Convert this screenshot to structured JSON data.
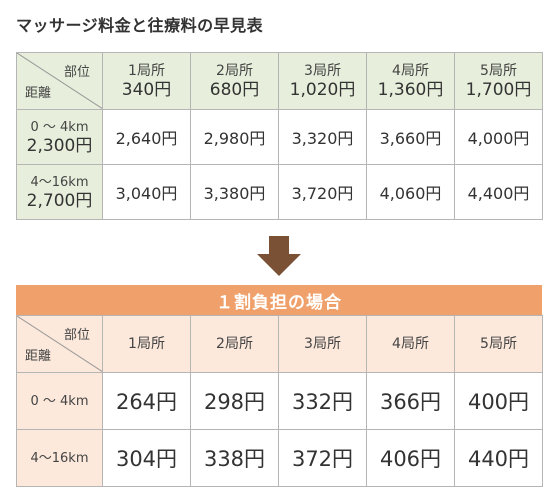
{
  "title": "マッサージ料金と往療料の早見表",
  "corner": {
    "top": "部位",
    "bottom": "距離"
  },
  "colors": {
    "green_header": "#e7efdc",
    "orange_header": "#fce9dc",
    "banner": "#f0a06a",
    "arrow": "#7a5134"
  },
  "table1": {
    "columns": [
      {
        "label": "1局所",
        "price": "340円"
      },
      {
        "label": "2局所",
        "price": "680円"
      },
      {
        "label": "3局所",
        "price": "1,020円"
      },
      {
        "label": "4局所",
        "price": "1,360円"
      },
      {
        "label": "5局所",
        "price": "1,700円"
      }
    ],
    "rows": [
      {
        "distance": "0 ～ 4km",
        "price": "2,300円",
        "values": [
          "2,640円",
          "2,980円",
          "3,320円",
          "3,660円",
          "4,000円"
        ]
      },
      {
        "distance": "4～16km",
        "price": "2,700円",
        "values": [
          "3,040円",
          "3,380円",
          "3,720円",
          "4,060円",
          "4,400円"
        ]
      }
    ]
  },
  "arrow_icon": "down-arrow-icon",
  "banner_text": "１割負担の場合",
  "table2": {
    "columns": [
      "1局所",
      "2局所",
      "3局所",
      "4局所",
      "5局所"
    ],
    "rows": [
      {
        "distance": "0 ～ 4km",
        "values": [
          "264円",
          "298円",
          "332円",
          "366円",
          "400円"
        ]
      },
      {
        "distance": "4～16km",
        "values": [
          "304円",
          "338円",
          "372円",
          "406円",
          "440円"
        ]
      }
    ]
  }
}
